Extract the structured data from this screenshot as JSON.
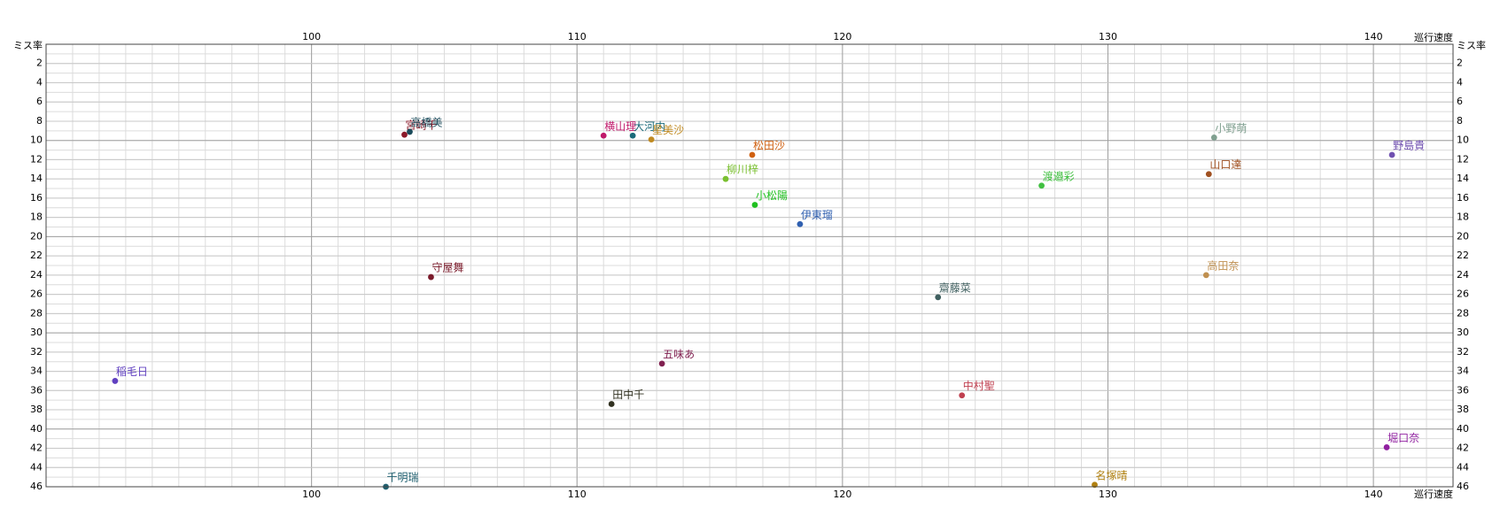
{
  "chart_data": {
    "type": "scatter",
    "x_label": "巡行速度",
    "y_label": "ミス率",
    "xlim": [
      90,
      143
    ],
    "ylim": [
      0,
      46
    ],
    "y_inverted": true,
    "xticks": [
      100,
      110,
      120,
      130,
      140
    ],
    "yticks": [
      2,
      4,
      6,
      8,
      10,
      12,
      14,
      16,
      18,
      20,
      22,
      24,
      26,
      28,
      30,
      32,
      34,
      36,
      38,
      40,
      42,
      44,
      46
    ],
    "grid": true,
    "series": [
      {
        "name": "宮崎千",
        "color": "#8b1a2a",
        "x": [
          103.5
        ],
        "values": [
          9.4
        ]
      },
      {
        "name": "高橋美",
        "color": "#1a4a5a",
        "x": [
          103.7
        ],
        "values": [
          9.1
        ]
      },
      {
        "name": "横山理",
        "color": "#c0186a",
        "x": [
          111.0
        ],
        "values": [
          9.5
        ]
      },
      {
        "name": "大河内",
        "color": "#1a6a7a",
        "x": [
          112.1
        ],
        "values": [
          9.5
        ]
      },
      {
        "name": "星美沙",
        "color": "#c08a20",
        "x": [
          112.8
        ],
        "values": [
          9.9
        ]
      },
      {
        "name": "松田沙",
        "color": "#d06010",
        "x": [
          116.6
        ],
        "values": [
          11.5
        ]
      },
      {
        "name": "柳川梓",
        "color": "#7ac030",
        "x": [
          115.6
        ],
        "values": [
          14.0
        ]
      },
      {
        "name": "小松陽",
        "color": "#20c020",
        "x": [
          116.7
        ],
        "values": [
          16.7
        ]
      },
      {
        "name": "伊東瑠",
        "color": "#3060b0",
        "x": [
          118.4
        ],
        "values": [
          18.7
        ]
      },
      {
        "name": "守屋舞",
        "color": "#7a1a2a",
        "x": [
          104.5
        ],
        "values": [
          24.2
        ]
      },
      {
        "name": "齋藤菜",
        "color": "#406060",
        "x": [
          123.6
        ],
        "values": [
          26.3
        ]
      },
      {
        "name": "渡邉彩",
        "color": "#40c040",
        "x": [
          127.5
        ],
        "values": [
          14.7
        ]
      },
      {
        "name": "小野萌",
        "color": "#80a090",
        "x": [
          134.0
        ],
        "values": [
          9.7
        ]
      },
      {
        "name": "山口達",
        "color": "#a05020",
        "x": [
          133.8
        ],
        "values": [
          13.5
        ]
      },
      {
        "name": "高田奈",
        "color": "#c09050",
        "x": [
          133.7
        ],
        "values": [
          24.0
        ]
      },
      {
        "name": "野島貴",
        "color": "#7050b0",
        "x": [
          140.7
        ],
        "values": [
          11.5
        ]
      },
      {
        "name": "稲毛日",
        "color": "#6040c0",
        "x": [
          92.6
        ],
        "values": [
          35.0
        ]
      },
      {
        "name": "五味あ",
        "color": "#802050",
        "x": [
          113.2
        ],
        "values": [
          33.2
        ]
      },
      {
        "name": "田中千",
        "color": "#303020",
        "x": [
          111.3
        ],
        "values": [
          37.4
        ]
      },
      {
        "name": "中村聖",
        "color": "#c04050",
        "x": [
          124.5
        ],
        "values": [
          36.5
        ]
      },
      {
        "name": "堀口奈",
        "color": "#9020a0",
        "x": [
          140.5
        ],
        "values": [
          41.9
        ]
      },
      {
        "name": "千明瑞",
        "color": "#206070",
        "x": [
          102.8
        ],
        "values": [
          46.0
        ]
      },
      {
        "name": "名塚晴",
        "color": "#b08010",
        "x": [
          129.5
        ],
        "values": [
          45.8
        ]
      }
    ]
  }
}
